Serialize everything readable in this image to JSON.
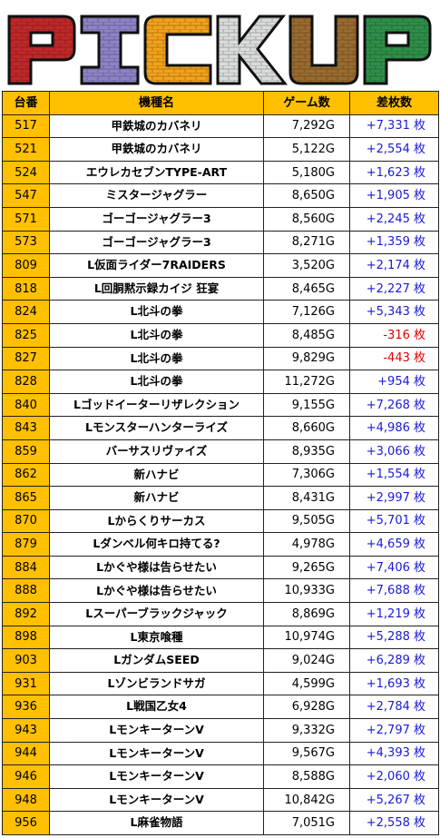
{
  "banner": {
    "letters": [
      "P",
      "I",
      "C",
      "K",
      "U",
      "P"
    ],
    "colors": [
      "#c0282a",
      "#8e83c7",
      "#f2a21b",
      "#d9dcdc",
      "#9a6b2f",
      "#2f8f4a"
    ]
  },
  "table": {
    "headers": [
      "台番",
      "機種名",
      "ゲーム数",
      "差枚数"
    ],
    "rows": [
      {
        "no": "517",
        "name": "甲鉄城のカバネリ",
        "games": "7,292G",
        "diff": "+7,331 枚",
        "neg": false
      },
      {
        "no": "521",
        "name": "甲鉄城のカバネリ",
        "games": "5,122G",
        "diff": "+2,554 枚",
        "neg": false
      },
      {
        "no": "524",
        "name": "エウレカセブンTYPE-ART",
        "games": "5,180G",
        "diff": "+1,623 枚",
        "neg": false
      },
      {
        "no": "547",
        "name": "ミスタージャグラー",
        "games": "8,650G",
        "diff": "+1,905 枚",
        "neg": false
      },
      {
        "no": "571",
        "name": "ゴーゴージャグラー3",
        "games": "8,560G",
        "diff": "+2,245 枚",
        "neg": false
      },
      {
        "no": "573",
        "name": "ゴーゴージャグラー3",
        "games": "8,271G",
        "diff": "+1,359 枚",
        "neg": false
      },
      {
        "no": "809",
        "name": "L仮面ライダー7RAIDERS",
        "games": "3,520G",
        "diff": "+2,174 枚",
        "neg": false
      },
      {
        "no": "818",
        "name": "L回胴黙示録カイジ 狂宴",
        "games": "8,465G",
        "diff": "+2,227 枚",
        "neg": false
      },
      {
        "no": "824",
        "name": "L北斗の拳",
        "games": "7,126G",
        "diff": "+5,343 枚",
        "neg": false
      },
      {
        "no": "825",
        "name": "L北斗の拳",
        "games": "8,485G",
        "diff": "-316 枚",
        "neg": true
      },
      {
        "no": "827",
        "name": "L北斗の拳",
        "games": "9,829G",
        "diff": "-443 枚",
        "neg": true
      },
      {
        "no": "828",
        "name": "L北斗の拳",
        "games": "11,272G",
        "diff": "+954 枚",
        "neg": false
      },
      {
        "no": "840",
        "name": "Lゴッドイーターリザレクション",
        "games": "9,155G",
        "diff": "+7,268 枚",
        "neg": false
      },
      {
        "no": "843",
        "name": "Lモンスターハンターライズ",
        "games": "8,660G",
        "diff": "+4,986 枚",
        "neg": false
      },
      {
        "no": "859",
        "name": "バーサスリヴァイズ",
        "games": "8,935G",
        "diff": "+3,066 枚",
        "neg": false
      },
      {
        "no": "862",
        "name": "新ハナビ",
        "games": "7,306G",
        "diff": "+1,554 枚",
        "neg": false
      },
      {
        "no": "865",
        "name": "新ハナビ",
        "games": "8,431G",
        "diff": "+2,997 枚",
        "neg": false
      },
      {
        "no": "870",
        "name": "Lからくりサーカス",
        "games": "9,505G",
        "diff": "+5,701 枚",
        "neg": false
      },
      {
        "no": "879",
        "name": "Lダンベル何キロ持てる?",
        "games": "4,978G",
        "diff": "+4,659 枚",
        "neg": false
      },
      {
        "no": "884",
        "name": "Lかぐや様は告らせたい",
        "games": "9,265G",
        "diff": "+7,406 枚",
        "neg": false
      },
      {
        "no": "888",
        "name": "Lかぐや様は告らせたい",
        "games": "10,933G",
        "diff": "+7,688 枚",
        "neg": false
      },
      {
        "no": "892",
        "name": "Lスーパーブラックジャック",
        "games": "8,869G",
        "diff": "+1,219 枚",
        "neg": false
      },
      {
        "no": "898",
        "name": "L東京喰種",
        "games": "10,974G",
        "diff": "+5,288 枚",
        "neg": false
      },
      {
        "no": "903",
        "name": "LガンダムSEED",
        "games": "9,024G",
        "diff": "+6,289 枚",
        "neg": false
      },
      {
        "no": "931",
        "name": "Lゾンビランドサガ",
        "games": "4,599G",
        "diff": "+1,693 枚",
        "neg": false
      },
      {
        "no": "936",
        "name": "L戦国乙女4",
        "games": "6,928G",
        "diff": "+2,784 枚",
        "neg": false
      },
      {
        "no": "943",
        "name": "LモンキーターンV",
        "games": "9,332G",
        "diff": "+2,797 枚",
        "neg": false
      },
      {
        "no": "944",
        "name": "LモンキーターンV",
        "games": "9,567G",
        "diff": "+4,393 枚",
        "neg": false
      },
      {
        "no": "946",
        "name": "LモンキーターンV",
        "games": "8,588G",
        "diff": "+2,060 枚",
        "neg": false
      },
      {
        "no": "948",
        "name": "LモンキーターンV",
        "games": "10,842G",
        "diff": "+5,267 枚",
        "neg": false
      },
      {
        "no": "956",
        "name": "L麻雀物語",
        "games": "7,051G",
        "diff": "+2,558 枚",
        "neg": false
      }
    ]
  }
}
